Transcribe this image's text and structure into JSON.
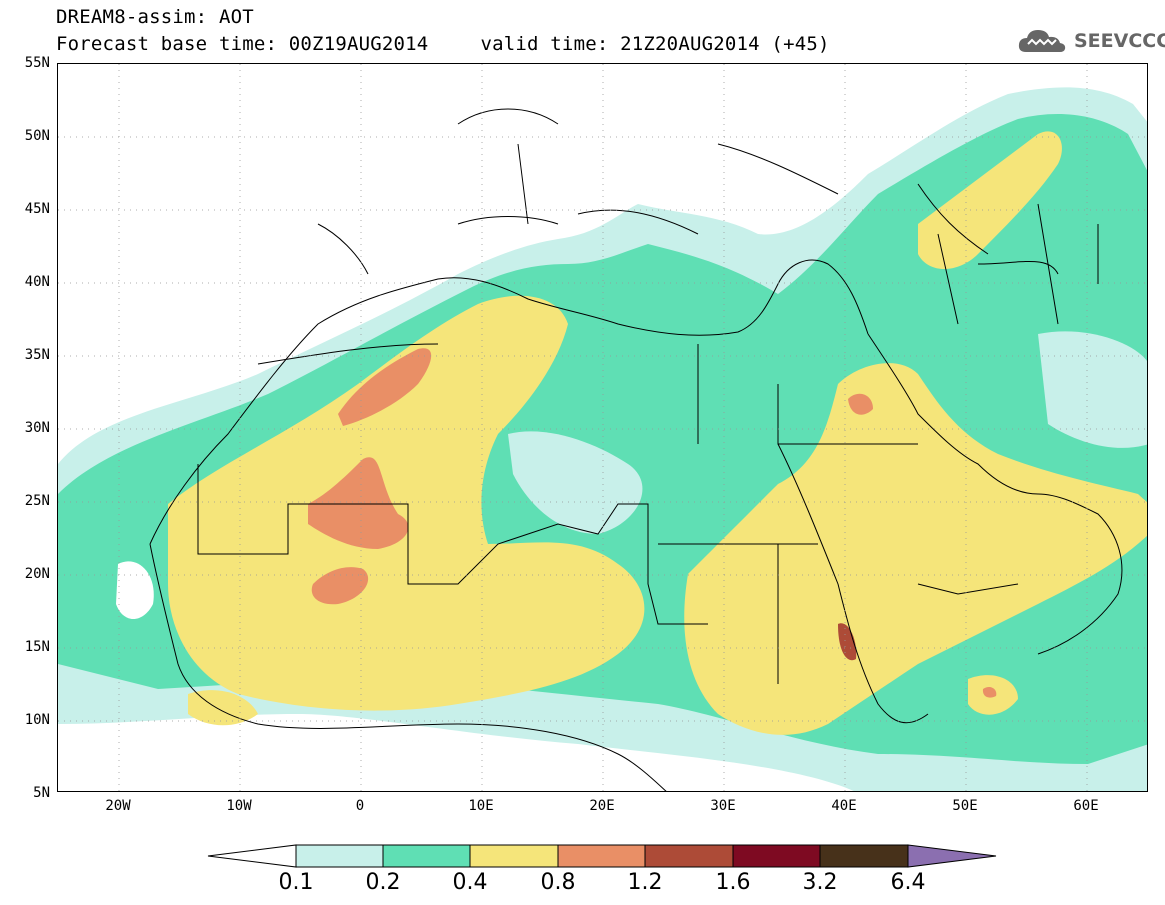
{
  "title": {
    "line1": "DREAM8-assim: AOT",
    "line2_base": "Forecast base time: 00Z19AUG2014",
    "line2_valid": "valid time: 21Z20AUG2014 (+45)"
  },
  "logo": {
    "text": "SEEVCCC",
    "icon": "cloud-icon"
  },
  "axes": {
    "lat_labels": [
      "55N",
      "50N",
      "45N",
      "40N",
      "35N",
      "30N",
      "25N",
      "20N",
      "15N",
      "10N",
      "5N"
    ],
    "lon_labels": [
      "20W",
      "10W",
      "0",
      "10E",
      "20E",
      "30E",
      "40E",
      "50E",
      "60E"
    ]
  },
  "colorbar": {
    "labels": [
      "0.1",
      "0.2",
      "0.4",
      "0.8",
      "1.2",
      "1.6",
      "3.2",
      "6.4"
    ],
    "colors": [
      "#c8f0ea",
      "#5fdfb4",
      "#f5e57a",
      "#e98f66",
      "#ad4b37",
      "#7e0a22",
      "#47311a",
      "#8b6fb0"
    ]
  },
  "palette": {
    "aot_0_1_0_2": "#c8f0ea",
    "aot_0_2_0_4": "#5fdfb4",
    "aot_0_4_0_8": "#f5e57a",
    "aot_0_8_1_2": "#e98f66",
    "aot_1_2_1_6": "#ad4b37"
  }
}
